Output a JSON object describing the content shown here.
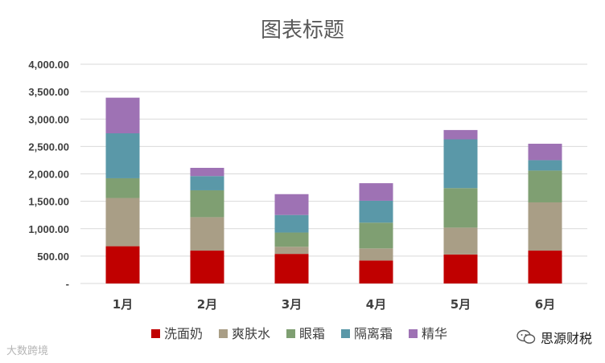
{
  "chart_data": {
    "type": "bar",
    "stacked": true,
    "title": "图表标题",
    "categories": [
      "1月",
      "2月",
      "3月",
      "4月",
      "5月",
      "6月"
    ],
    "series": [
      {
        "name": "洗面奶",
        "color": "#c00000",
        "values": [
          680,
          600,
          540,
          420,
          530,
          600
        ]
      },
      {
        "name": "爽肤水",
        "color": "#a99e86",
        "values": [
          880,
          610,
          130,
          220,
          490,
          880
        ]
      },
      {
        "name": "眼霜",
        "color": "#7f9f72",
        "values": [
          360,
          490,
          260,
          470,
          720,
          580
        ]
      },
      {
        "name": "隔离霜",
        "color": "#5a98a8",
        "values": [
          820,
          260,
          320,
          400,
          890,
          190
        ]
      },
      {
        "name": "精华",
        "color": "#9e72b4",
        "values": [
          650,
          150,
          380,
          320,
          170,
          300
        ]
      }
    ],
    "y_ticks": [
      "-",
      "500.00",
      "1,000.00",
      "1,500.00",
      "2,000.00",
      "2,500.00",
      "3,000.00",
      "3,500.00",
      "4,000.00"
    ],
    "ylim": [
      0,
      4000
    ],
    "grid": true,
    "legend_position": "bottom"
  },
  "watermark": {
    "left_text": "大数跨境",
    "right_text": "思源财税",
    "right_icon": "wechat-icon"
  }
}
